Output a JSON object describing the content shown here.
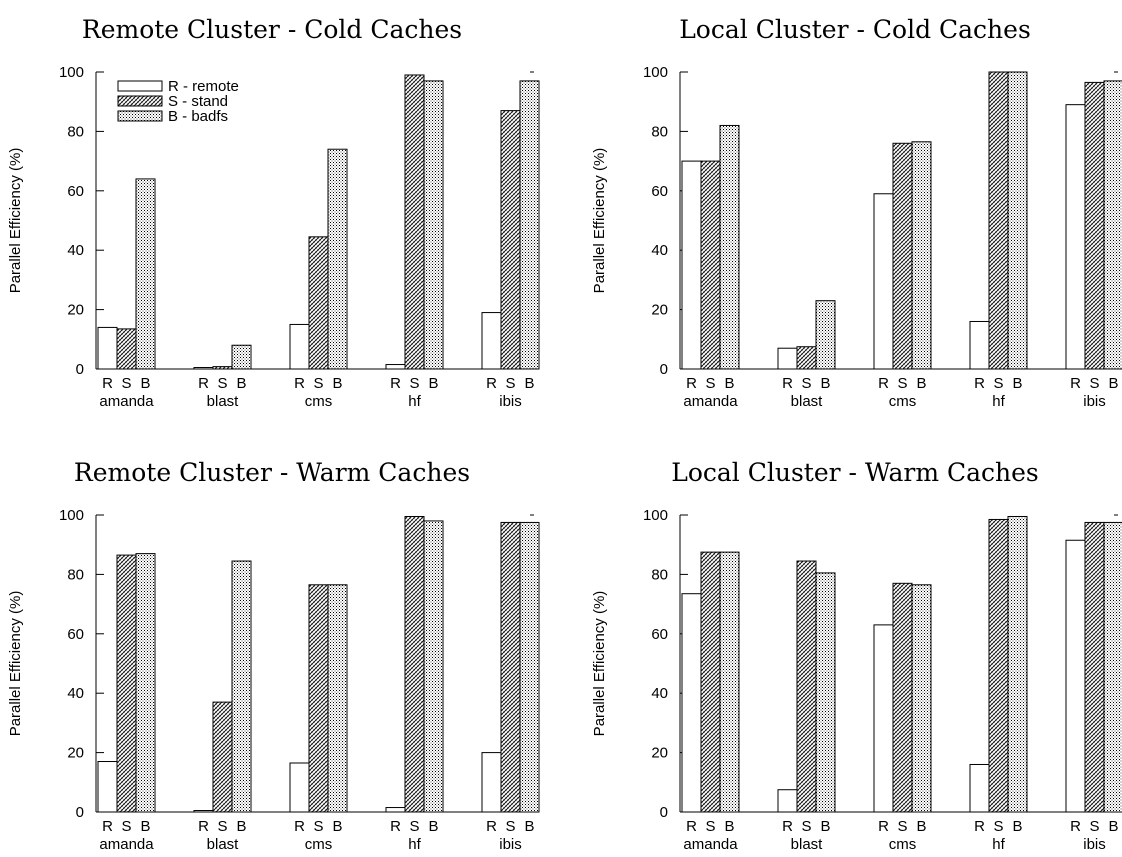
{
  "chart_data": [
    {
      "type": "bar",
      "title": "Remote Cluster - Cold Caches",
      "ylabel": "Parallel Efficiency (%)",
      "xlabel": "",
      "ylim": [
        0,
        100
      ],
      "yticks": [
        "0",
        "20",
        "40",
        "60",
        "80",
        "100"
      ],
      "categories": [
        "amanda",
        "blast",
        "cms",
        "hf",
        "ibis"
      ],
      "bar_labels": [
        "R",
        "S",
        "B"
      ],
      "legend": {
        "placement": "top-left",
        "entries": [
          "R - remote",
          "S - stand",
          "B - badfs"
        ]
      },
      "series": [
        {
          "name": "R - remote",
          "values": [
            14,
            0.5,
            15,
            1.5,
            19
          ]
        },
        {
          "name": "S - stand",
          "values": [
            13.5,
            0.8,
            44.5,
            99,
            87
          ]
        },
        {
          "name": "B - badfs",
          "values": [
            64,
            8,
            74,
            97,
            97
          ]
        }
      ]
    },
    {
      "type": "bar",
      "title": "Local Cluster - Cold Caches",
      "ylabel": "Parallel Efficiency (%)",
      "xlabel": "",
      "ylim": [
        0,
        100
      ],
      "yticks": [
        "0",
        "20",
        "40",
        "60",
        "80",
        "100"
      ],
      "categories": [
        "amanda",
        "blast",
        "cms",
        "hf",
        "ibis"
      ],
      "bar_labels": [
        "R",
        "S",
        "B"
      ],
      "series": [
        {
          "name": "R - remote",
          "values": [
            70,
            7,
            59,
            16,
            89
          ]
        },
        {
          "name": "S - stand",
          "values": [
            70,
            7.5,
            76,
            100,
            96.5
          ]
        },
        {
          "name": "B - badfs",
          "values": [
            82,
            23,
            76.5,
            100,
            97
          ]
        }
      ]
    },
    {
      "type": "bar",
      "title": "Remote Cluster - Warm Caches",
      "ylabel": "Parallel Efficiency (%)",
      "xlabel": "",
      "ylim": [
        0,
        100
      ],
      "yticks": [
        "0",
        "20",
        "40",
        "60",
        "80",
        "100"
      ],
      "categories": [
        "amanda",
        "blast",
        "cms",
        "hf",
        "ibis"
      ],
      "bar_labels": [
        "R",
        "S",
        "B"
      ],
      "series": [
        {
          "name": "R - remote",
          "values": [
            17,
            0.5,
            16.5,
            1.5,
            20
          ]
        },
        {
          "name": "S - stand",
          "values": [
            86.5,
            37,
            76.5,
            99.5,
            97.5
          ]
        },
        {
          "name": "B - badfs",
          "values": [
            87,
            84.5,
            76.5,
            98,
            97.5
          ]
        }
      ]
    },
    {
      "type": "bar",
      "title": "Local Cluster - Warm Caches",
      "ylabel": "Parallel Efficiency (%)",
      "xlabel": "",
      "ylim": [
        0,
        100
      ],
      "yticks": [
        "0",
        "20",
        "40",
        "60",
        "80",
        "100"
      ],
      "categories": [
        "amanda",
        "blast",
        "cms",
        "hf",
        "ibis"
      ],
      "bar_labels": [
        "R",
        "S",
        "B"
      ],
      "series": [
        {
          "name": "R - remote",
          "values": [
            73.5,
            7.5,
            63,
            16,
            91.5
          ]
        },
        {
          "name": "S - stand",
          "values": [
            87.5,
            84.5,
            77,
            98.5,
            97.5
          ]
        },
        {
          "name": "B - badfs",
          "values": [
            87.5,
            80.5,
            76.5,
            99.5,
            97.5
          ]
        }
      ]
    }
  ],
  "colors": {
    "stroke": "#000000",
    "remote_fill": "#ffffff"
  },
  "pattern_names": [
    "blank",
    "dense-diagonal-hatch",
    "fine-dot-stipple"
  ]
}
